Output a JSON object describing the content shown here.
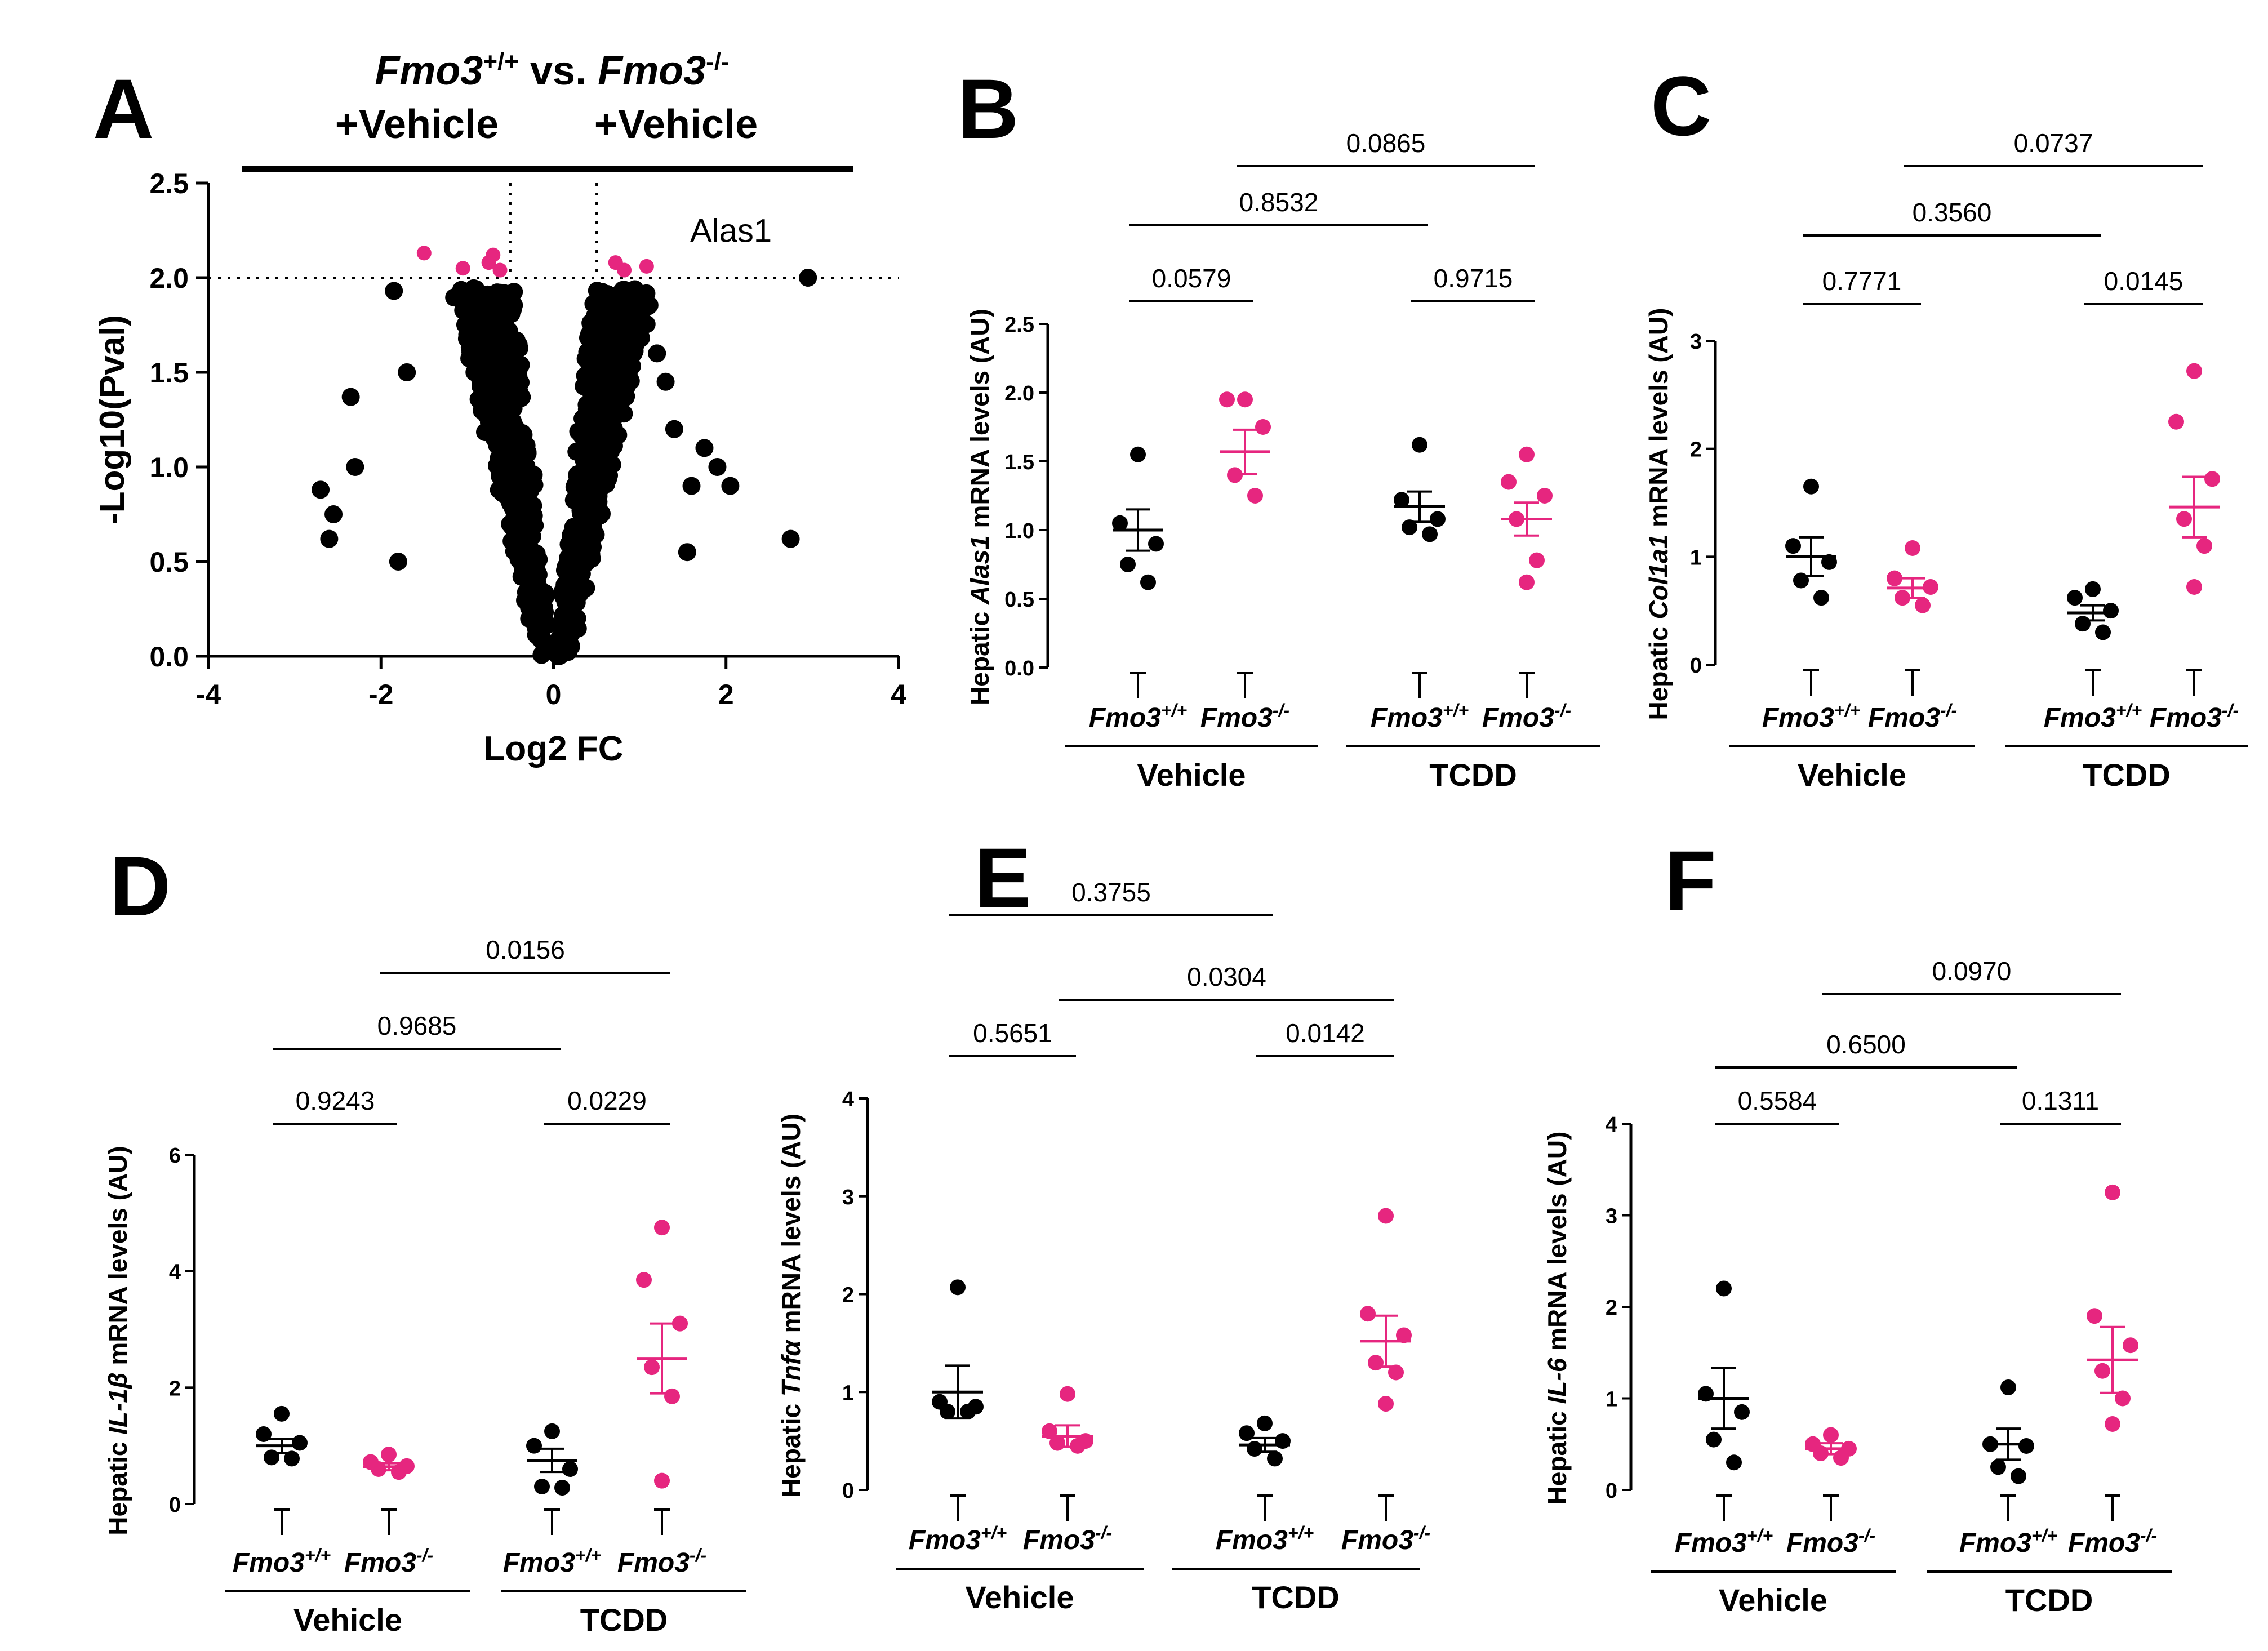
{
  "colors": {
    "black_group": "#000000",
    "pink_group": "#e6267f"
  },
  "genotypes": [
    "Fmo3+/+",
    "Fmo3-/-",
    "Fmo3+/+",
    "Fmo3-/-"
  ],
  "groups": [
    "Vehicle",
    "TCDD"
  ],
  "chart_data": [
    {
      "panel": "A",
      "type": "scatter",
      "title_line1": "Fmo3+/+ vs. Fmo3-/-",
      "title_left": "+Vehicle",
      "title_right": "+Vehicle",
      "xlabel": "Log2 FC",
      "ylabel": "-Log10(Pval)",
      "xlim": [
        -4,
        4
      ],
      "ylim": [
        0,
        2.5
      ],
      "xticks": [
        "-4",
        "-2",
        "0",
        "2",
        "4"
      ],
      "yticks": [
        "0.0",
        "0.5",
        "1.0",
        "1.5",
        "2.0",
        "2.5"
      ],
      "threshold_y": 2.0,
      "threshold_x": [
        -0.5,
        0.5
      ],
      "annotation": {
        "label": "Alas1",
        "x": 0.8,
        "y": 2.1
      },
      "significant_points": [
        {
          "x": -1.5,
          "y": 2.13
        },
        {
          "x": -1.05,
          "y": 2.05
        },
        {
          "x": -0.75,
          "y": 2.08
        },
        {
          "x": -0.7,
          "y": 2.12
        },
        {
          "x": -0.62,
          "y": 2.04
        },
        {
          "x": 0.72,
          "y": 2.08
        },
        {
          "x": 0.82,
          "y": 2.04
        },
        {
          "x": 1.08,
          "y": 2.06
        }
      ],
      "outlier_points": [
        {
          "x": 2.95,
          "y": 2.0
        },
        {
          "x": -2.7,
          "y": 0.88
        },
        {
          "x": -2.6,
          "y": 0.62
        },
        {
          "x": -2.55,
          "y": 0.75
        },
        {
          "x": -2.35,
          "y": 1.37
        },
        {
          "x": -2.3,
          "y": 1.0
        },
        {
          "x": -1.85,
          "y": 1.93
        },
        {
          "x": -1.8,
          "y": 0.5
        },
        {
          "x": -1.7,
          "y": 1.5
        },
        {
          "x": 1.4,
          "y": 1.2
        },
        {
          "x": 1.55,
          "y": 0.55
        },
        {
          "x": 1.6,
          "y": 0.9
        },
        {
          "x": 1.75,
          "y": 1.1
        },
        {
          "x": 1.9,
          "y": 1.0
        },
        {
          "x": 2.05,
          "y": 0.9
        },
        {
          "x": 2.75,
          "y": 0.62
        },
        {
          "x": 1.3,
          "y": 1.45
        },
        {
          "x": 1.2,
          "y": 1.6
        }
      ]
    },
    {
      "panel": "B",
      "type": "scatter",
      "ylabel_pre": "Hepatic ",
      "ylabel_gene": "Alas1",
      "ylabel_post": " mRNA levels (AU)",
      "ylim": [
        0,
        2.5
      ],
      "yticks": [
        "0.0",
        "0.5",
        "1.0",
        "1.5",
        "2.0",
        "2.5"
      ],
      "series": [
        {
          "group": "Vehicle",
          "genotype": "Fmo3+/+",
          "mean": 1.0,
          "sem": 0.15,
          "values": [
            1.55,
            1.05,
            0.9,
            0.75,
            0.62
          ]
        },
        {
          "group": "Vehicle",
          "genotype": "Fmo3-/-",
          "mean": 1.57,
          "sem": 0.16,
          "values": [
            1.95,
            1.95,
            1.75,
            1.4,
            1.25
          ]
        },
        {
          "group": "TCDD",
          "genotype": "Fmo3+/+",
          "mean": 1.17,
          "sem": 0.11,
          "values": [
            1.62,
            1.22,
            1.08,
            1.02,
            0.97
          ]
        },
        {
          "group": "TCDD",
          "genotype": "Fmo3-/-",
          "mean": 1.08,
          "sem": 0.12,
          "values": [
            1.55,
            1.35,
            1.25,
            1.08,
            0.78,
            0.62
          ]
        }
      ],
      "comparisons": [
        {
          "from": 0,
          "to": 1,
          "label": "0.0579",
          "level": 0
        },
        {
          "from": 2,
          "to": 3,
          "label": "0.9715",
          "level": 0
        },
        {
          "from": 0,
          "to": 2,
          "label": "0.8532",
          "level": 1
        },
        {
          "from": 1,
          "to": 3,
          "label": "0.0865",
          "level": 2
        }
      ]
    },
    {
      "panel": "C",
      "type": "scatter",
      "ylabel_pre": "Hepatic ",
      "ylabel_gene": "Col1a1",
      "ylabel_post": " mRNA levels (AU)",
      "ylim": [
        0,
        3
      ],
      "yticks": [
        "0",
        "1",
        "2",
        "3"
      ],
      "series": [
        {
          "group": "Vehicle",
          "genotype": "Fmo3+/+",
          "mean": 1.0,
          "sem": 0.18,
          "values": [
            1.65,
            1.1,
            0.95,
            0.78,
            0.62
          ]
        },
        {
          "group": "Vehicle",
          "genotype": "Fmo3-/-",
          "mean": 0.71,
          "sem": 0.09,
          "values": [
            1.08,
            0.8,
            0.72,
            0.62,
            0.55
          ]
        },
        {
          "group": "TCDD",
          "genotype": "Fmo3+/+",
          "mean": 0.48,
          "sem": 0.07,
          "values": [
            0.7,
            0.62,
            0.5,
            0.38,
            0.3
          ]
        },
        {
          "group": "TCDD",
          "genotype": "Fmo3-/-",
          "mean": 1.46,
          "sem": 0.28,
          "values": [
            2.72,
            2.25,
            1.72,
            1.35,
            1.1,
            0.72
          ]
        }
      ],
      "comparisons": [
        {
          "from": 0,
          "to": 1,
          "label": "0.7771",
          "level": 0
        },
        {
          "from": 2,
          "to": 3,
          "label": "0.0145",
          "level": 0
        },
        {
          "from": 0,
          "to": 2,
          "label": "0.3560",
          "level": 1
        },
        {
          "from": 1,
          "to": 3,
          "label": "0.0737",
          "level": 2
        }
      ]
    },
    {
      "panel": "D",
      "type": "scatter",
      "ylabel_pre": "Hepatic ",
      "ylabel_gene": "IL-1β",
      "ylabel_post": " mRNA levels (AU)",
      "ylim": [
        0,
        6
      ],
      "yticks": [
        "0",
        "2",
        "4",
        "6"
      ],
      "series": [
        {
          "group": "Vehicle",
          "genotype": "Fmo3+/+",
          "mean": 1.0,
          "sem": 0.12,
          "values": [
            1.55,
            1.2,
            1.05,
            0.8,
            0.78
          ]
        },
        {
          "group": "Vehicle",
          "genotype": "Fmo3-/-",
          "mean": 0.64,
          "sem": 0.06,
          "values": [
            0.85,
            0.72,
            0.65,
            0.6,
            0.55
          ]
        },
        {
          "group": "TCDD",
          "genotype": "Fmo3+/+",
          "mean": 0.75,
          "sem": 0.2,
          "values": [
            1.25,
            1.0,
            0.6,
            0.3,
            0.28
          ]
        },
        {
          "group": "TCDD",
          "genotype": "Fmo3-/-",
          "mean": 2.5,
          "sem": 0.6,
          "values": [
            4.75,
            3.85,
            3.1,
            2.35,
            1.85,
            0.4
          ]
        }
      ],
      "comparisons": [
        {
          "from": 0,
          "to": 1,
          "label": "0.9243",
          "level": 0
        },
        {
          "from": 2,
          "to": 3,
          "label": "0.0229",
          "level": 0
        },
        {
          "from": 0,
          "to": 2,
          "label": "0.9685",
          "level": 1
        },
        {
          "from": 1,
          "to": 3,
          "label": "0.0156",
          "level": 2
        }
      ]
    },
    {
      "panel": "E",
      "type": "scatter",
      "ylabel_pre": "Hepatic ",
      "ylabel_gene": "Tnfα",
      "ylabel_post": " mRNA levels (AU)",
      "ylim": [
        0,
        4
      ],
      "yticks": [
        "0",
        "1",
        "2",
        "3",
        "4"
      ],
      "series": [
        {
          "group": "Vehicle",
          "genotype": "Fmo3+/+",
          "mean": 1.0,
          "sem": 0.27,
          "values": [
            2.07,
            0.9,
            0.85,
            0.8,
            0.8
          ]
        },
        {
          "group": "Vehicle",
          "genotype": "Fmo3-/-",
          "mean": 0.55,
          "sem": 0.11,
          "values": [
            0.98,
            0.6,
            0.5,
            0.48,
            0.45
          ]
        },
        {
          "group": "TCDD",
          "genotype": "Fmo3+/+",
          "mean": 0.46,
          "sem": 0.07,
          "values": [
            0.68,
            0.58,
            0.5,
            0.42,
            0.32
          ]
        },
        {
          "group": "TCDD",
          "genotype": "Fmo3-/-",
          "mean": 1.52,
          "sem": 0.26,
          "values": [
            2.8,
            1.8,
            1.58,
            1.3,
            1.2,
            0.88
          ]
        }
      ],
      "comparisons": [
        {
          "from": 0,
          "to": 1,
          "label": "0.5651",
          "level": 0
        },
        {
          "from": 2,
          "to": 3,
          "label": "0.0142",
          "level": 0
        },
        {
          "from": 1,
          "to": 3,
          "label": "0.0304",
          "level": 1
        },
        {
          "from": 0,
          "to": 2,
          "label": "0.3755",
          "level": 2
        }
      ]
    },
    {
      "panel": "F",
      "type": "scatter",
      "ylabel_pre": "Hepatic ",
      "ylabel_gene": "IL-6",
      "ylabel_post": " mRNA levels (AU)",
      "ylim": [
        0,
        4
      ],
      "yticks": [
        "0",
        "1",
        "2",
        "3",
        "4"
      ],
      "series": [
        {
          "group": "Vehicle",
          "genotype": "Fmo3+/+",
          "mean": 1.0,
          "sem": 0.33,
          "values": [
            2.2,
            1.05,
            0.85,
            0.55,
            0.3
          ]
        },
        {
          "group": "Vehicle",
          "genotype": "Fmo3-/-",
          "mean": 0.45,
          "sem": 0.06,
          "values": [
            0.6,
            0.5,
            0.45,
            0.4,
            0.35
          ]
        },
        {
          "group": "TCDD",
          "genotype": "Fmo3+/+",
          "mean": 0.5,
          "sem": 0.17,
          "values": [
            1.12,
            0.5,
            0.48,
            0.25,
            0.15
          ]
        },
        {
          "group": "TCDD",
          "genotype": "Fmo3-/-",
          "mean": 1.42,
          "sem": 0.36,
          "values": [
            3.25,
            1.9,
            1.58,
            1.3,
            1.0,
            0.72
          ]
        }
      ],
      "comparisons": [
        {
          "from": 0,
          "to": 1,
          "label": "0.5584",
          "level": 0
        },
        {
          "from": 2,
          "to": 3,
          "label": "0.1311",
          "level": 0
        },
        {
          "from": 0,
          "to": 2,
          "label": "0.6500",
          "level": 1
        },
        {
          "from": 1,
          "to": 3,
          "label": "0.0970",
          "level": 2
        }
      ]
    }
  ]
}
